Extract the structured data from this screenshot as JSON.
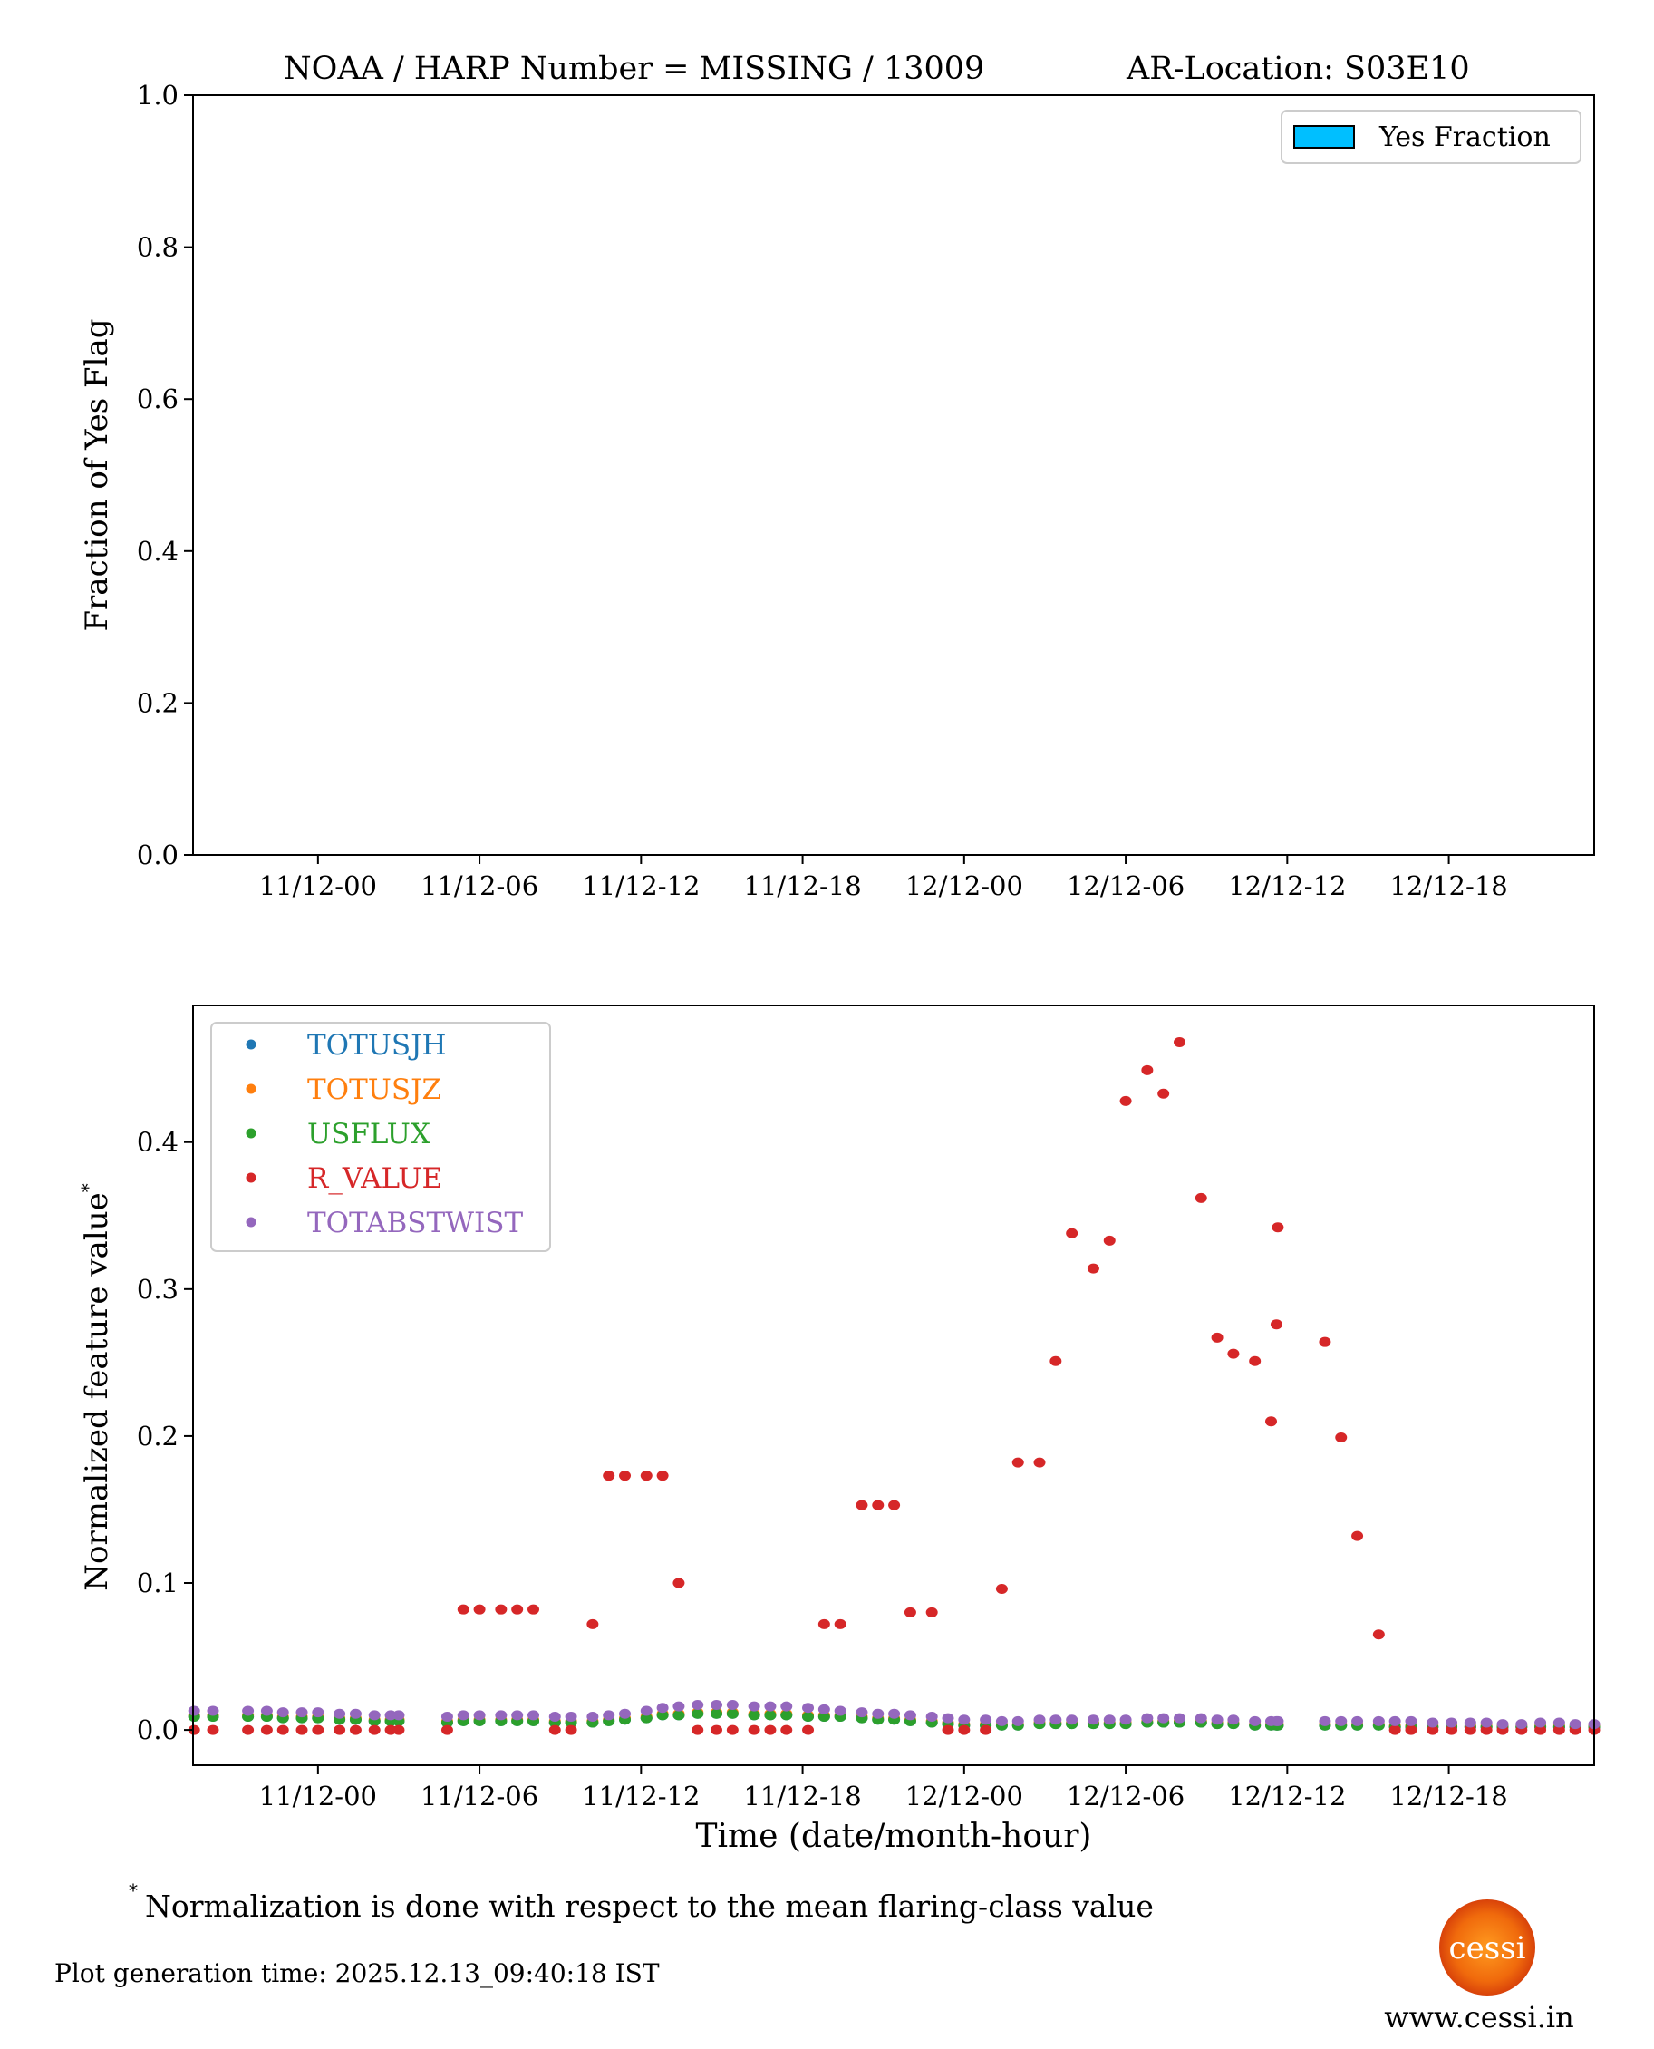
{
  "title": {
    "left": "NOAA / HARP Number = MISSING / 13009",
    "right": "AR-Location: S03E10"
  },
  "footnote": {
    "mark": "*",
    "text": "Normalization is done with respect to the mean flaring-class value"
  },
  "generation_time": "Plot generation time: 2025.12.13_09:40:18 IST",
  "logo": {
    "text": "cessi",
    "url_text": "www.cessi.in"
  },
  "chart_data": [
    {
      "type": "bar",
      "ylabel": "Fraction of Yes Flag",
      "ylim": [
        0,
        1
      ],
      "xlim_hours_from_11_12_00": [
        -4.64,
        47.4
      ],
      "yticks": [
        "0.0",
        "0.2",
        "0.4",
        "0.6",
        "0.8",
        "1.0"
      ],
      "ytick_values": [
        0,
        0.2,
        0.4,
        0.6,
        0.8,
        1.0
      ],
      "xticks": [
        "11/12-00",
        "11/12-06",
        "11/12-12",
        "11/12-18",
        "12/12-00",
        "12/12-06",
        "12/12-12",
        "12/12-18"
      ],
      "xtick_hours": [
        0,
        6,
        12,
        18,
        24,
        30,
        36,
        42
      ],
      "legend": {
        "label": "Yes Fraction",
        "color": "#00bfff",
        "placement": "top-right"
      },
      "values": []
    },
    {
      "type": "scatter",
      "xlabel": "Time (date/month-hour)",
      "ylabel": "Normalized feature value",
      "ylabel_mark": "*",
      "ylim": [
        -0.024,
        0.493
      ],
      "xlim_hours_from_11_12_00": [
        -4.64,
        47.4
      ],
      "yticks": [
        "0.0",
        "0.1",
        "0.2",
        "0.3",
        "0.4"
      ],
      "ytick_values": [
        0,
        0.1,
        0.2,
        0.3,
        0.4
      ],
      "xticks": [
        "11/12-00",
        "11/12-06",
        "11/12-12",
        "11/12-18",
        "12/12-00",
        "12/12-06",
        "12/12-12",
        "12/12-18"
      ],
      "xtick_hours": [
        0,
        6,
        12,
        18,
        24,
        30,
        36,
        42
      ],
      "legend_placement": "top-left",
      "x_hours": [
        -4.6,
        -3.9,
        -2.6,
        -1.9,
        -1.3,
        -0.6,
        0,
        0.8,
        1.4,
        2.1,
        2.7,
        3.0,
        4.8,
        5.4,
        6,
        6.8,
        7.4,
        8,
        8.8,
        9.4,
        10.2,
        10.8,
        11.4,
        12.2,
        12.8,
        13.4,
        14.1,
        14.8,
        15.4,
        16.2,
        16.8,
        17.4,
        18.2,
        18.8,
        19.4,
        20.2,
        20.8,
        21.4,
        22,
        22.8,
        23.4,
        24,
        24.8,
        25.4,
        26,
        26.8,
        27.4,
        28,
        28.8,
        29.4,
        30,
        30.8,
        31.4,
        32,
        32.8,
        33.4,
        34,
        34.8,
        35.4,
        35.6,
        35.65,
        37.4,
        38,
        38.6,
        39.4,
        40,
        40.6,
        41.4,
        42.1,
        42.8,
        43.4,
        44,
        44.7,
        45.4,
        46.1,
        46.7,
        47.4
      ],
      "series": [
        {
          "name": "TOTUSJH",
          "color": "#1f77b4",
          "values": [
            0.009,
            0.009,
            0.009,
            0.009,
            0.008,
            0.008,
            0.008,
            0.007,
            0.007,
            0.006,
            0.006,
            0.006,
            0.005,
            0.006,
            0.006,
            0.006,
            0.006,
            0.006,
            0.005,
            0.005,
            0.005,
            0.006,
            0.007,
            0.008,
            0.01,
            0.01,
            0.011,
            0.011,
            0.011,
            0.01,
            0.01,
            0.01,
            0.009,
            0.009,
            0.009,
            0.008,
            0.007,
            0.007,
            0.006,
            0.005,
            0.004,
            0.003,
            0.003,
            0.003,
            0.003,
            0.004,
            0.004,
            0.004,
            0.004,
            0.004,
            0.004,
            0.005,
            0.005,
            0.005,
            0.005,
            0.004,
            0.004,
            0.003,
            0.003,
            0.003,
            0.003,
            0.003,
            0.003,
            0.003,
            0.003,
            0.002,
            0.002,
            0.002,
            0.002,
            0.002,
            0.002,
            0.002,
            0.002,
            0.002,
            0.002,
            0.002,
            0.002
          ]
        },
        {
          "name": "TOTUSJZ",
          "color": "#ff7f0e",
          "values": [
            0.01,
            0.01,
            0.01,
            0.01,
            0.009,
            0.009,
            0.009,
            0.008,
            0.008,
            0.007,
            0.007,
            0.007,
            0.006,
            0.007,
            0.007,
            0.007,
            0.007,
            0.007,
            0.006,
            0.006,
            0.006,
            0.007,
            0.008,
            0.009,
            0.011,
            0.011,
            0.012,
            0.012,
            0.012,
            0.011,
            0.011,
            0.011,
            0.01,
            0.01,
            0.01,
            0.009,
            0.008,
            0.008,
            0.007,
            0.006,
            0.005,
            0.004,
            0.004,
            0.004,
            0.004,
            0.005,
            0.005,
            0.005,
            0.005,
            0.005,
            0.005,
            0.006,
            0.006,
            0.006,
            0.006,
            0.005,
            0.005,
            0.004,
            0.004,
            0.004,
            0.004,
            0.004,
            0.004,
            0.004,
            0.004,
            0.003,
            0.003,
            0.003,
            0.003,
            0.003,
            0.003,
            0.003,
            0.003,
            0.003,
            0.003,
            0.003,
            0.003
          ]
        },
        {
          "name": "USFLUX",
          "color": "#2ca02c",
          "values": [
            0.009,
            0.009,
            0.009,
            0.009,
            0.008,
            0.008,
            0.008,
            0.007,
            0.007,
            0.006,
            0.006,
            0.006,
            0.005,
            0.006,
            0.006,
            0.006,
            0.006,
            0.006,
            0.005,
            0.005,
            0.005,
            0.006,
            0.007,
            0.008,
            0.01,
            0.01,
            0.011,
            0.011,
            0.011,
            0.01,
            0.01,
            0.01,
            0.009,
            0.009,
            0.009,
            0.008,
            0.007,
            0.007,
            0.006,
            0.005,
            0.004,
            0.003,
            0.003,
            0.003,
            0.003,
            0.004,
            0.004,
            0.004,
            0.004,
            0.004,
            0.004,
            0.005,
            0.005,
            0.005,
            0.005,
            0.004,
            0.004,
            0.003,
            0.003,
            0.003,
            0.003,
            0.003,
            0.003,
            0.003,
            0.003,
            0.002,
            0.002,
            0.002,
            0.002,
            0.002,
            0.002,
            0.002,
            0.002,
            0.002,
            0.002,
            0.002,
            0.002
          ]
        },
        {
          "name": "R_VALUE",
          "color": "#d62728",
          "values": [
            0,
            0,
            0,
            0,
            0,
            0,
            0,
            0,
            0,
            0,
            0,
            0,
            0,
            0.082,
            0.082,
            0.082,
            0.082,
            0.082,
            0,
            0,
            0.072,
            0.173,
            0.173,
            0.173,
            0.173,
            0.1,
            0,
            0,
            0,
            0,
            0,
            0,
            0,
            0.072,
            0.072,
            0.153,
            0.153,
            0.153,
            0.08,
            0.08,
            0,
            0,
            0,
            0.096,
            0.182,
            0.182,
            0.251,
            0.338,
            0.314,
            0.333,
            0.428,
            0.449,
            0.433,
            0.468,
            0.362,
            0.267,
            0.256,
            0.251,
            0.21,
            0.276,
            0.342,
            0.264,
            0.199,
            0.132,
            0.065,
            0,
            0,
            0,
            0,
            0,
            0,
            0,
            0,
            0,
            0,
            0,
            0
          ]
        },
        {
          "name": "TOTABSTWIST",
          "color": "#9467bd",
          "values": [
            0.013,
            0.013,
            0.013,
            0.013,
            0.012,
            0.012,
            0.012,
            0.011,
            0.011,
            0.01,
            0.01,
            0.01,
            0.009,
            0.01,
            0.01,
            0.01,
            0.01,
            0.01,
            0.009,
            0.009,
            0.009,
            0.01,
            0.011,
            0.013,
            0.015,
            0.016,
            0.017,
            0.017,
            0.017,
            0.016,
            0.016,
            0.016,
            0.015,
            0.014,
            0.013,
            0.012,
            0.011,
            0.011,
            0.01,
            0.009,
            0.008,
            0.007,
            0.007,
            0.006,
            0.006,
            0.007,
            0.007,
            0.007,
            0.007,
            0.007,
            0.007,
            0.008,
            0.008,
            0.008,
            0.008,
            0.007,
            0.007,
            0.006,
            0.006,
            0.006,
            0.006,
            0.006,
            0.006,
            0.006,
            0.006,
            0.006,
            0.006,
            0.005,
            0.005,
            0.005,
            0.005,
            0.004,
            0.004,
            0.005,
            0.005,
            0.004,
            0.004
          ]
        }
      ]
    }
  ]
}
